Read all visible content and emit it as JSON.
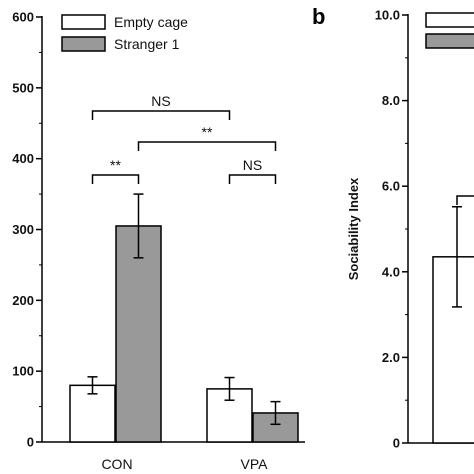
{
  "panel_b": {
    "label": "b"
  },
  "chart_data": [
    {
      "type": "bar",
      "categories": [
        "CON",
        "VPA"
      ],
      "series": [
        {
          "name": "Empty cage",
          "values": [
            80,
            75
          ],
          "errors": [
            12,
            16
          ],
          "color": "#ffffff"
        },
        {
          "name": "Stranger 1",
          "values": [
            305,
            41
          ],
          "errors": [
            45,
            16
          ],
          "color": "#999999"
        }
      ],
      "ylim": [
        0,
        600
      ],
      "yticks": [
        "0",
        "100",
        "200",
        "300",
        "400",
        "500",
        "600"
      ],
      "ylabel": "",
      "xlabel": "",
      "legend": "top-left",
      "annotations": [
        {
          "text": "NS",
          "between": "CON Empty cage vs VPA Empty cage"
        },
        {
          "text": "**",
          "between": "CON Stranger 1 vs VPA Stranger 1"
        },
        {
          "text": "**",
          "between": "CON Empty cage vs CON Stranger 1"
        },
        {
          "text": "NS",
          "between": "VPA Empty cage vs VPA Stranger 1"
        }
      ]
    },
    {
      "type": "bar",
      "categories": [
        ""
      ],
      "series": [
        {
          "name": "",
          "values": [
            4.35
          ],
          "errors": [
            1.17
          ],
          "color": "#ffffff"
        }
      ],
      "ylim": [
        0,
        10
      ],
      "yticks": [
        "0",
        "2.0",
        "4.0",
        "6.0",
        "8.0",
        "10.0"
      ],
      "ylabel": "Sociability Index",
      "xlabel": ""
    }
  ]
}
